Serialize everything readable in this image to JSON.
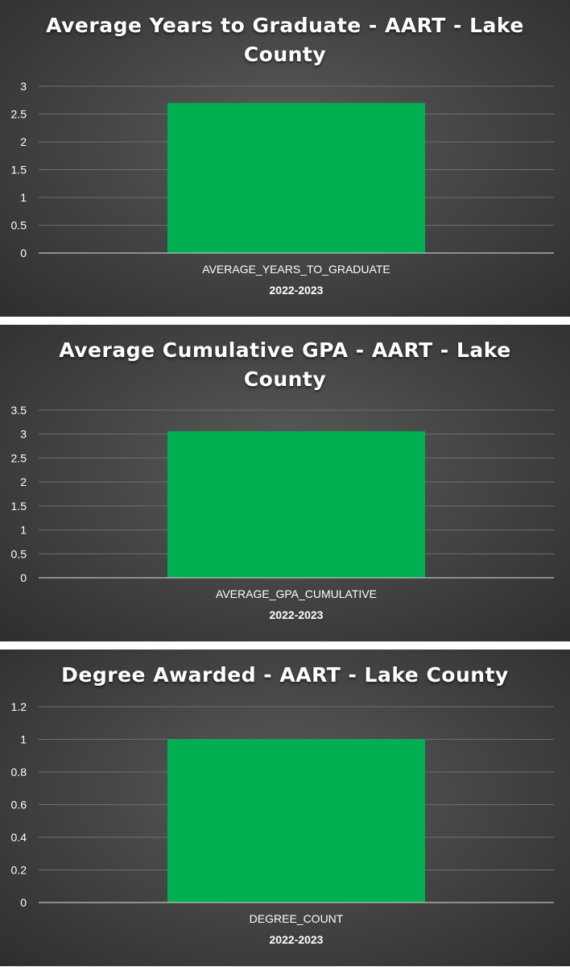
{
  "colors": {
    "bar": "#00b050",
    "grid": "#6e6e6e",
    "axis": "#bfbfbf"
  },
  "chart_data": [
    {
      "type": "bar",
      "title": "Average Years to Graduate - AART - Lake County",
      "categories": [
        "AVERAGE_YEARS_TO_GRADUATE"
      ],
      "series_label": "2022-2023",
      "values": [
        2.7
      ],
      "ylim": [
        0,
        3
      ],
      "yticks": [
        0,
        0.5,
        1,
        1.5,
        2,
        2.5,
        3
      ],
      "ytick_labels": [
        "0",
        "0.5",
        "1",
        "1.5",
        "2",
        "2.5",
        "3"
      ],
      "grid": true
    },
    {
      "type": "bar",
      "title": "Average Cumulative GPA - AART - Lake County",
      "categories": [
        "AVERAGE_GPA_CUMULATIVE"
      ],
      "series_label": "2022-2023",
      "values": [
        3.06
      ],
      "ylim": [
        0,
        3.5
      ],
      "yticks": [
        0,
        0.5,
        1,
        1.5,
        2,
        2.5,
        3,
        3.5
      ],
      "ytick_labels": [
        "0",
        "0.5",
        "1",
        "1.5",
        "2",
        "2.5",
        "3",
        "3.5"
      ],
      "grid": true
    },
    {
      "type": "bar",
      "title": "Degree Awarded - AART - Lake County",
      "categories": [
        "DEGREE_COUNT"
      ],
      "series_label": "2022-2023",
      "values": [
        1
      ],
      "ylim": [
        0,
        1.2
      ],
      "yticks": [
        0,
        0.2,
        0.4,
        0.6,
        0.8,
        1,
        1.2
      ],
      "ytick_labels": [
        "0",
        "0.2",
        "0.4",
        "0.6",
        "0.8",
        "1",
        "1.2"
      ],
      "grid": true
    }
  ]
}
